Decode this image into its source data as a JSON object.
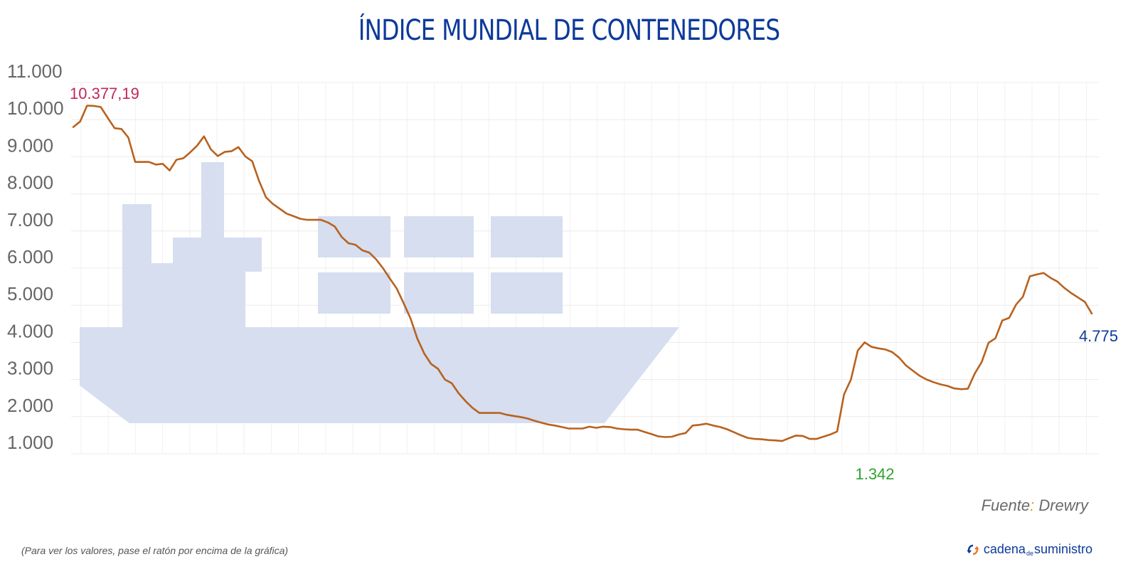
{
  "title": "ÍNDICE MUNDIAL DE CONTENEDORES",
  "source": {
    "prefix": "Fuente",
    "colon": ":",
    "name": " Drewry"
  },
  "hint": "(Para ver los valores, pase el ratón por encima de la gráfica)",
  "brand": {
    "part1": "cadena",
    "part2": "de",
    "part3": "suministro",
    "icon": "refresh-arrows-icon"
  },
  "colors": {
    "line": "#b8621f",
    "ship": "#d6def0",
    "title": "#0d3a9a",
    "max_label": "#c0285a",
    "min_label": "#2ea32e",
    "last_label": "#0d3a9a",
    "grid": "#eeeeee"
  },
  "annotations": {
    "max": "10.377,19",
    "min": "1.342",
    "last": "4.775"
  },
  "chart_data": {
    "type": "line",
    "title": "ÍNDICE MUNDIAL DE CONTENEDORES",
    "xlabel": "",
    "ylabel": "",
    "ylim": [
      1000,
      11000
    ],
    "yticks": [
      "1.000",
      "2.000",
      "3.000",
      "4.000",
      "5.000",
      "6.000",
      "7.000",
      "8.000",
      "9.000",
      "10.000",
      "11.000"
    ],
    "grid": true,
    "legend": null,
    "series": [
      {
        "name": "Índice mundial de contenedores (Drewry)",
        "values": [
          9800,
          9950,
          10377,
          10370,
          10340,
          10050,
          9770,
          9750,
          9520,
          8860,
          8860,
          8860,
          8790,
          8810,
          8630,
          8920,
          8960,
          9120,
          9300,
          9550,
          9200,
          9020,
          9130,
          9150,
          9260,
          9010,
          8880,
          8350,
          7910,
          7730,
          7600,
          7470,
          7400,
          7330,
          7300,
          7300,
          7300,
          7230,
          7120,
          6840,
          6670,
          6630,
          6480,
          6420,
          6240,
          6000,
          5720,
          5450,
          5060,
          4650,
          4100,
          3700,
          3420,
          3290,
          3000,
          2900,
          2630,
          2420,
          2240,
          2100,
          2100,
          2100,
          2100,
          2050,
          2020,
          1990,
          1950,
          1890,
          1840,
          1790,
          1760,
          1720,
          1680,
          1680,
          1680,
          1730,
          1700,
          1730,
          1720,
          1680,
          1660,
          1650,
          1650,
          1590,
          1530,
          1470,
          1450,
          1460,
          1520,
          1560,
          1760,
          1780,
          1810,
          1760,
          1720,
          1660,
          1580,
          1500,
          1430,
          1400,
          1390,
          1370,
          1360,
          1342,
          1420,
          1490,
          1480,
          1400,
          1400,
          1460,
          1520,
          1600,
          2600,
          3000,
          3780,
          4000,
          3880,
          3840,
          3810,
          3740,
          3590,
          3380,
          3240,
          3100,
          3000,
          2930,
          2870,
          2830,
          2760,
          2740,
          2750,
          3160,
          3470,
          3990,
          4110,
          4590,
          4660,
          5020,
          5230,
          5780,
          5830,
          5870,
          5740,
          5640,
          5470,
          5330,
          5210,
          5090,
          4775
        ]
      }
    ]
  }
}
